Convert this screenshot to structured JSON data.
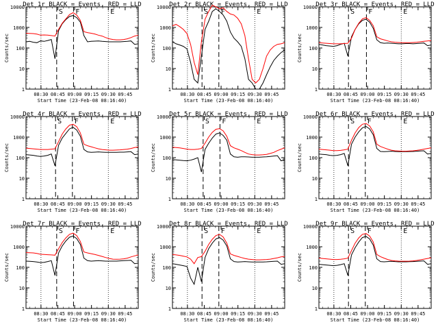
{
  "chart_data": [
    {
      "type": "line",
      "title": "Det 1r BLACK = Events, RED = LLD",
      "xlabel": "Start Time (23-Feb-08 08:16:40)",
      "ylabel": "Counts/sec",
      "xticks": [
        "08:30",
        "08:45",
        "09:00",
        "09:15",
        "09:30",
        "09:45"
      ],
      "yticks": [
        "1",
        "10",
        "100",
        "1000",
        "10000"
      ],
      "ylim": [
        1,
        10000
      ],
      "yscale": "log",
      "markers": [
        {
          "label": "S",
          "time": "08:44"
        },
        {
          "label": "F",
          "time": "08:59"
        },
        {
          "label": "E",
          "time": "09:30"
        }
      ],
      "series": [
        {
          "name": "BLACK",
          "color": "#000000",
          "values": [
            200,
            210,
            190,
            180,
            220,
            210,
            230,
            260,
            30,
            700,
            1500,
            2400,
            3400,
            3800,
            3000,
            1800,
            400,
            200,
            210,
            215,
            220,
            210,
            205,
            200,
            200,
            200,
            200,
            205,
            210,
            220,
            150,
            160
          ]
        },
        {
          "name": "RED",
          "color": "#ff0000",
          "values": [
            520,
            510,
            500,
            470,
            420,
            430,
            420,
            400,
            380,
            800,
            1600,
            2600,
            4200,
            5200,
            4000,
            2200,
            620,
            560,
            520,
            480,
            420,
            380,
            320,
            280,
            260,
            250,
            250,
            260,
            280,
            320,
            380,
            420
          ]
        }
      ]
    },
    {
      "type": "line",
      "title": "Det 2r BLACK = Events, RED = LLD",
      "xlabel": "Start Time (23-Feb-08 08:16:40)",
      "ylabel": "Counts/sec",
      "xticks": [
        "08:30",
        "08:45",
        "09:00",
        "09:15",
        "09:30",
        "09:45"
      ],
      "yticks": [
        "1",
        "10",
        "100",
        "1000",
        "10000"
      ],
      "ylim": [
        1,
        10000
      ],
      "yscale": "log",
      "markers": [
        {
          "label": "S",
          "time": "08:43"
        },
        {
          "label": "F",
          "time": "08:58"
        },
        {
          "label": "E",
          "time": "09:30"
        }
      ],
      "series": [
        {
          "name": "BLACK",
          "color": "#000000",
          "values": [
            200,
            160,
            140,
            120,
            90,
            20,
            3,
            2,
            40,
            800,
            2000,
            6000,
            8000,
            6000,
            4000,
            2000,
            600,
            300,
            200,
            120,
            30,
            3,
            2,
            1,
            1,
            2,
            5,
            12,
            25,
            40,
            60,
            80
          ]
        },
        {
          "name": "RED",
          "color": "#ff0000",
          "values": [
            1200,
            1400,
            1100,
            800,
            500,
            150,
            20,
            5,
            200,
            2500,
            6000,
            12000,
            10000,
            8000,
            9000,
            6000,
            4500,
            4000,
            2800,
            1500,
            400,
            30,
            3,
            2,
            3,
            10,
            40,
            80,
            120,
            150,
            160,
            180
          ]
        }
      ]
    },
    {
      "type": "line",
      "title": "Det 3r BLACK = Events, RED = LLD",
      "xlabel": "Start Time (23-Feb-08 08:16:40)",
      "ylabel": "Counts/sec",
      "xticks": [
        "08:30",
        "08:45",
        "09:00",
        "09:15",
        "09:30",
        "09:45"
      ],
      "yticks": [
        "1",
        "10",
        "100",
        "1000",
        "10000"
      ],
      "ylim": [
        1,
        10000
      ],
      "yscale": "log",
      "markers": [
        {
          "label": "S",
          "time": "08:43"
        },
        {
          "label": "F",
          "time": "08:59"
        },
        {
          "label": "E",
          "time": "09:30"
        }
      ],
      "series": [
        {
          "name": "BLACK",
          "color": "#000000",
          "values": [
            150,
            140,
            130,
            125,
            120,
            130,
            150,
            170,
            40,
            350,
            800,
            1500,
            2200,
            2500,
            1800,
            900,
            250,
            180,
            170,
            175,
            170,
            165,
            160,
            160,
            165,
            165,
            160,
            165,
            170,
            175,
            130,
            140
          ]
        },
        {
          "name": "RED",
          "color": "#ff0000",
          "values": [
            180,
            175,
            170,
            165,
            160,
            160,
            160,
            165,
            170,
            300,
            800,
            1600,
            2600,
            3000,
            2200,
            1200,
            350,
            280,
            250,
            220,
            200,
            190,
            185,
            180,
            180,
            180,
            185,
            190,
            200,
            210,
            220,
            230
          ]
        }
      ]
    },
    {
      "type": "line",
      "title": "Det 4r BLACK = Events, RED = LLD",
      "xlabel": "Start Time (23-Feb-08 08:16:40)",
      "ylabel": "Counts/sec",
      "xticks": [
        "08:30",
        "08:45",
        "09:00",
        "09:15",
        "09:30",
        "09:45"
      ],
      "yticks": [
        "1",
        "10",
        "100",
        "1000",
        "10000"
      ],
      "ylim": [
        1,
        10000
      ],
      "yscale": "log",
      "markers": [
        {
          "label": "S",
          "time": "08:43"
        },
        {
          "label": "F",
          "time": "08:58"
        },
        {
          "label": "E",
          "time": "09:30"
        }
      ],
      "series": [
        {
          "name": "BLACK",
          "color": "#000000",
          "values": [
            140,
            135,
            130,
            120,
            115,
            120,
            130,
            150,
            40,
            400,
            900,
            1500,
            2500,
            3000,
            2200,
            1100,
            250,
            190,
            180,
            185,
            190,
            185,
            180,
            180,
            180,
            180,
            185,
            185,
            190,
            195,
            140,
            150
          ]
        },
        {
          "name": "RED",
          "color": "#ff0000",
          "values": [
            290,
            280,
            270,
            260,
            250,
            250,
            250,
            260,
            270,
            600,
            1400,
            2500,
            3800,
            4200,
            3200,
            1600,
            450,
            380,
            340,
            300,
            270,
            250,
            240,
            230,
            230,
            235,
            240,
            250,
            260,
            280,
            310,
            330
          ]
        }
      ]
    },
    {
      "type": "line",
      "title": "Det 5r BLACK = Events, RED = LLD",
      "xlabel": "Start Time (23-Feb-08 08:16:40)",
      "ylabel": "Counts/sec",
      "xticks": [
        "08:30",
        "08:45",
        "09:00",
        "09:15",
        "09:30",
        "09:45"
      ],
      "yticks": [
        "1",
        "10",
        "100",
        "1000",
        "10000"
      ],
      "ylim": [
        1,
        10000
      ],
      "yscale": "log",
      "markers": [
        {
          "label": "S",
          "time": "08:44"
        },
        {
          "label": "F",
          "time": "08:59"
        },
        {
          "label": "E",
          "time": "09:30"
        }
      ],
      "series": [
        {
          "name": "BLACK",
          "color": "#000000",
          "values": [
            80,
            78,
            75,
            72,
            70,
            75,
            85,
            100,
            20,
            250,
            500,
            900,
            1400,
            1600,
            1200,
            700,
            150,
            110,
            105,
            110,
            110,
            108,
            105,
            105,
            105,
            108,
            110,
            115,
            120,
            125,
            70,
            80
          ]
        },
        {
          "name": "RED",
          "color": "#ff0000",
          "values": [
            320,
            310,
            300,
            280,
            260,
            250,
            250,
            260,
            280,
            500,
            1000,
            1700,
            2400,
            2600,
            2000,
            1100,
            380,
            300,
            260,
            220,
            180,
            150,
            140,
            135,
            135,
            138,
            145,
            160,
            180,
            220,
            260,
            300
          ]
        }
      ]
    },
    {
      "type": "line",
      "title": "Det 6r BLACK = Events, RED = LLD",
      "xlabel": "Start Time (23-Feb-08 08:16:40)",
      "ylabel": "Counts/sec",
      "xticks": [
        "08:30",
        "08:45",
        "09:00",
        "09:15",
        "09:30",
        "09:45"
      ],
      "yticks": [
        "1",
        "10",
        "100",
        "1000",
        "10000"
      ],
      "ylim": [
        1,
        10000
      ],
      "yscale": "log",
      "markers": [
        {
          "label": "S",
          "time": "08:43"
        },
        {
          "label": "F",
          "time": "08:58"
        },
        {
          "label": "E",
          "time": "09:30"
        }
      ],
      "series": [
        {
          "name": "BLACK",
          "color": "#000000",
          "values": [
            150,
            145,
            140,
            130,
            125,
            130,
            140,
            160,
            40,
            450,
            1000,
            1800,
            2800,
            3300,
            2500,
            1300,
            280,
            200,
            195,
            200,
            205,
            200,
            195,
            195,
            195,
            198,
            200,
            205,
            210,
            215,
            150,
            160
          ]
        },
        {
          "name": "RED",
          "color": "#ff0000",
          "values": [
            260,
            250,
            240,
            230,
            220,
            220,
            225,
            240,
            260,
            700,
            1600,
            2900,
            4200,
            4600,
            3500,
            1800,
            450,
            350,
            300,
            260,
            230,
            215,
            210,
            205,
            205,
            210,
            215,
            225,
            240,
            260,
            280,
            300
          ]
        }
      ]
    },
    {
      "type": "line",
      "title": "Det 7r BLACK = Events, RED = LLD",
      "xlabel": "Start Time (23-Feb-08 08:16:40)",
      "ylabel": "Counts/sec",
      "xticks": [
        "08:30",
        "08:45",
        "09:00",
        "09:15",
        "09:30",
        "09:45"
      ],
      "yticks": [
        "1",
        "10",
        "100",
        "1000",
        "10000"
      ],
      "ylim": [
        1,
        10000
      ],
      "yscale": "log",
      "markers": [
        {
          "label": "S",
          "time": "08:44"
        },
        {
          "label": "F",
          "time": "08:59"
        },
        {
          "label": "E",
          "time": "09:30"
        }
      ],
      "series": [
        {
          "name": "BLACK",
          "color": "#000000",
          "values": [
            200,
            195,
            190,
            180,
            170,
            175,
            190,
            210,
            40,
            500,
            1100,
            1900,
            2900,
            3300,
            2500,
            1300,
            280,
            210,
            200,
            205,
            210,
            205,
            200,
            200,
            200,
            200,
            205,
            210,
            215,
            220,
            150,
            160
          ]
        },
        {
          "name": "RED",
          "color": "#ff0000",
          "values": [
            520,
            510,
            500,
            470,
            430,
            420,
            410,
            400,
            390,
            800,
            1600,
            2700,
            4000,
            4600,
            3500,
            1800,
            560,
            500,
            460,
            420,
            380,
            340,
            300,
            270,
            250,
            245,
            250,
            260,
            280,
            320,
            360,
            400
          ]
        }
      ]
    },
    {
      "type": "line",
      "title": "Det 8r BLACK = Events, RED = LLD",
      "xlabel": "Start Time (23-Feb-08 08:16:40)",
      "ylabel": "Counts/sec",
      "xticks": [
        "08:30",
        "08:45",
        "09:00",
        "09:15",
        "09:30",
        "09:45"
      ],
      "yticks": [
        "1",
        "10",
        "100",
        "1000",
        "10000"
      ],
      "ylim": [
        1,
        10000
      ],
      "yscale": "log",
      "markers": [
        {
          "label": "S",
          "time": "08:43"
        },
        {
          "label": "F",
          "time": "08:58"
        },
        {
          "label": "E",
          "time": "09:30"
        }
      ],
      "series": [
        {
          "name": "BLACK",
          "color": "#000000",
          "values": [
            150,
            140,
            130,
            120,
            110,
            30,
            15,
            100,
            20,
            300,
            800,
            1500,
            2400,
            2800,
            2100,
            1100,
            260,
            190,
            180,
            185,
            190,
            185,
            180,
            180,
            180,
            182,
            185,
            190,
            195,
            200,
            140,
            150
          ]
        },
        {
          "name": "RED",
          "color": "#ff0000",
          "values": [
            420,
            400,
            380,
            350,
            320,
            250,
            150,
            300,
            330,
            600,
            1300,
            2300,
            3500,
            4000,
            3000,
            1500,
            450,
            380,
            340,
            300,
            270,
            250,
            240,
            230,
            230,
            235,
            240,
            250,
            270,
            290,
            320,
            340
          ]
        }
      ]
    },
    {
      "type": "line",
      "title": "Det 9r BLACK = Events, RED = LLD",
      "xlabel": "Start Time (23-Feb-08 08:16:40)",
      "ylabel": "Counts/sec",
      "xticks": [
        "08:30",
        "08:45",
        "09:00",
        "09:15",
        "09:30",
        "09:45"
      ],
      "yticks": [
        "1",
        "10",
        "100",
        "1000",
        "10000"
      ],
      "ylim": [
        1,
        10000
      ],
      "yscale": "log",
      "markers": [
        {
          "label": "S",
          "time": "08:43"
        },
        {
          "label": "F",
          "time": "08:58"
        },
        {
          "label": "E",
          "time": "09:30"
        }
      ],
      "series": [
        {
          "name": "BLACK",
          "color": "#000000",
          "values": [
            140,
            135,
            130,
            125,
            120,
            125,
            135,
            150,
            40,
            400,
            900,
            1700,
            2800,
            3200,
            2400,
            1200,
            260,
            190,
            185,
            190,
            195,
            190,
            185,
            185,
            185,
            188,
            190,
            195,
            200,
            205,
            140,
            150
          ]
        },
        {
          "name": "RED",
          "color": "#ff0000",
          "values": [
            280,
            270,
            260,
            250,
            240,
            240,
            245,
            260,
            280,
            650,
            1500,
            2700,
            4000,
            4400,
            3300,
            1700,
            420,
            330,
            280,
            240,
            215,
            205,
            200,
            198,
            198,
            200,
            205,
            215,
            230,
            250,
            270,
            290
          ]
        }
      ]
    }
  ]
}
